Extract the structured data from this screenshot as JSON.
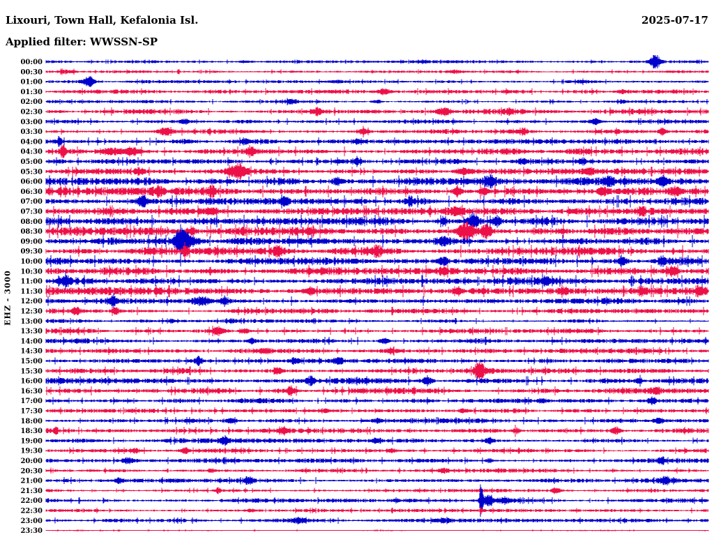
{
  "header": {
    "title": "Lixouri, Town Hall, Kefalonia Isl.",
    "date": "2025-07-17",
    "filter_label": "Applied filter: WWSSN-SP"
  },
  "colors": {
    "background": "#ffffff",
    "text": "#000000",
    "trace_blue": "#0000cc",
    "trace_red": "#ed1048"
  },
  "chart_data": {
    "type": "line",
    "subtype": "helicorder-seismogram",
    "title": "Lixouri, Town Hall, Kefalonia Isl.",
    "date": "2025-07-17",
    "filter": "WWSSN-SP",
    "channel_scale_label": "EHZ - 3000",
    "row_interval_minutes": 30,
    "rows_start": "00:00",
    "rows_end": "23:30",
    "legend": "alternating blue (:00) and red (:30) half-hour traces",
    "rows": [
      {
        "label": "00:00",
        "color": "blue",
        "base": 1.0,
        "bursts": [
          [
            0.92,
            8,
            8
          ],
          [
            0.3,
            10,
            1.5
          ],
          [
            0.57,
            5,
            1.8
          ]
        ]
      },
      {
        "label": "00:30",
        "color": "red",
        "base": 1.0,
        "bursts": [
          [
            0.03,
            14,
            1.8
          ],
          [
            0.2,
            2,
            3.5
          ],
          [
            0.62,
            8,
            1.5
          ]
        ]
      },
      {
        "label": "01:00",
        "color": "blue",
        "base": 1.1,
        "bursts": [
          [
            0.065,
            8,
            5.5
          ],
          [
            0.44,
            6,
            1.8
          ],
          [
            0.81,
            8,
            1.6
          ]
        ]
      },
      {
        "label": "01:30",
        "color": "red",
        "base": 1.5,
        "bursts": [
          [
            0.51,
            9,
            3.5
          ],
          [
            0.87,
            7,
            2.5
          ]
        ]
      },
      {
        "label": "02:00",
        "color": "blue",
        "base": 1.2,
        "bursts": [
          [
            0.37,
            7,
            2.6
          ],
          [
            0.5,
            5,
            2.2
          ],
          [
            0.87,
            5,
            2.0
          ]
        ]
      },
      {
        "label": "02:30",
        "color": "red",
        "base": 1.8,
        "bursts": [
          [
            0.41,
            8,
            3.5
          ],
          [
            0.6,
            9,
            4.5
          ],
          [
            0.7,
            6,
            3.0
          ]
        ]
      },
      {
        "label": "03:00",
        "color": "blue",
        "base": 1.5,
        "bursts": [
          [
            0.21,
            6,
            2.5
          ],
          [
            0.83,
            7,
            3.5
          ]
        ]
      },
      {
        "label": "03:30",
        "color": "red",
        "base": 1.8,
        "bursts": [
          [
            0.18,
            8,
            4.5
          ],
          [
            0.48,
            7,
            3.5
          ],
          [
            0.72,
            6,
            3.5
          ],
          [
            0.93,
            6,
            3.5
          ]
        ]
      },
      {
        "label": "04:00",
        "color": "blue",
        "base": 1.8,
        "bursts": [
          [
            0.02,
            3,
            5.5
          ],
          [
            0.3,
            5,
            2.6
          ],
          [
            0.47,
            6,
            2.8
          ]
        ]
      },
      {
        "label": "04:30",
        "color": "red",
        "base": 2.2,
        "bursts": [
          [
            0.025,
            4,
            6.5
          ],
          [
            0.1,
            14,
            4.5
          ],
          [
            0.13,
            10,
            5.5
          ],
          [
            0.31,
            8,
            3.5
          ]
        ]
      },
      {
        "label": "05:00",
        "color": "blue",
        "base": 1.8,
        "bursts": [
          [
            0.47,
            7,
            2.8
          ],
          [
            0.72,
            7,
            3.5
          ],
          [
            0.81,
            6,
            3.5
          ]
        ]
      },
      {
        "label": "05:30",
        "color": "red",
        "base": 2.2,
        "bursts": [
          [
            0.14,
            6,
            3.5
          ],
          [
            0.29,
            11,
            7.5
          ],
          [
            0.63,
            8,
            3.5
          ],
          [
            0.82,
            6,
            3.5
          ]
        ]
      },
      {
        "label": "06:00",
        "color": "blue",
        "base": 2.7,
        "bursts": [
          [
            0.44,
            7,
            3.5
          ],
          [
            0.67,
            8,
            5.5
          ],
          [
            0.85,
            7,
            4.5
          ],
          [
            0.93,
            7,
            4.5
          ]
        ]
      },
      {
        "label": "06:30",
        "color": "red",
        "base": 2.7,
        "bursts": [
          [
            0.17,
            7,
            4.5
          ],
          [
            0.25,
            7,
            4.5
          ],
          [
            0.62,
            7,
            5.0
          ],
          [
            0.66,
            6,
            5.0
          ],
          [
            0.84,
            6,
            4.5
          ],
          [
            0.95,
            6,
            4.5
          ]
        ]
      },
      {
        "label": "07:00",
        "color": "blue",
        "base": 2.7,
        "bursts": [
          [
            0.145,
            8,
            6.5
          ],
          [
            0.36,
            6,
            3.5
          ],
          [
            0.55,
            6,
            3.5
          ]
        ]
      },
      {
        "label": "07:30",
        "color": "red",
        "base": 2.7,
        "bursts": [
          [
            0.25,
            7,
            4.5
          ],
          [
            0.62,
            7,
            4.5
          ],
          [
            0.9,
            6,
            3.5
          ]
        ]
      },
      {
        "label": "08:00",
        "color": "blue",
        "base": 2.9,
        "bursts": [
          [
            0.6,
            4,
            7.5
          ],
          [
            0.645,
            8,
            8.5
          ],
          [
            0.68,
            6,
            6.0
          ]
        ]
      },
      {
        "label": "08:30",
        "color": "red",
        "base": 3.1,
        "bursts": [
          [
            0.22,
            5,
            5.5
          ],
          [
            0.635,
            12,
            9.5
          ],
          [
            0.665,
            7,
            8.0
          ]
        ]
      },
      {
        "label": "09:00",
        "color": "blue",
        "base": 2.9,
        "bursts": [
          [
            0.205,
            8,
            12.5
          ],
          [
            0.21,
            15,
            6.0
          ],
          [
            0.6,
            6,
            3.5
          ]
        ]
      },
      {
        "label": "09:30",
        "color": "red",
        "base": 2.9,
        "bursts": [
          [
            0.21,
            3,
            7.5
          ],
          [
            0.35,
            7,
            4.5
          ],
          [
            0.5,
            7,
            4.5
          ]
        ]
      },
      {
        "label": "10:00",
        "color": "blue",
        "base": 2.7,
        "bursts": [
          [
            0.6,
            7,
            4.5
          ],
          [
            0.87,
            6,
            4.5
          ],
          [
            0.93,
            6,
            4.5
          ]
        ]
      },
      {
        "label": "10:30",
        "color": "red",
        "base": 2.7,
        "bursts": [
          [
            0.6,
            6,
            3.5
          ],
          [
            0.945,
            8,
            5.5
          ]
        ]
      },
      {
        "label": "11:00",
        "color": "blue",
        "base": 2.7,
        "bursts": [
          [
            0.03,
            5,
            6.5
          ],
          [
            0.755,
            6,
            3.5
          ]
        ]
      },
      {
        "label": "11:30",
        "color": "red",
        "base": 2.7,
        "bursts": [
          [
            0.4,
            6,
            4.5
          ],
          [
            0.62,
            6,
            4.5
          ],
          [
            0.78,
            6,
            4.5
          ],
          [
            0.9,
            6,
            4.5
          ],
          [
            0.985,
            5,
            4.5
          ]
        ]
      },
      {
        "label": "12:00",
        "color": "blue",
        "base": 2.1,
        "bursts": [
          [
            0.1,
            6,
            4.5
          ],
          [
            0.235,
            14,
            4.5
          ],
          [
            0.27,
            7,
            4.5
          ]
        ]
      },
      {
        "label": "12:30",
        "color": "red",
        "base": 1.8,
        "bursts": [
          [
            0.045,
            6,
            4.5
          ],
          [
            0.105,
            6,
            3.5
          ]
        ]
      },
      {
        "label": "13:00",
        "color": "blue",
        "base": 1.3,
        "bursts": [
          [
            0.19,
            5,
            2.2
          ],
          [
            0.28,
            5,
            2.2
          ]
        ]
      },
      {
        "label": "13:30",
        "color": "red",
        "base": 1.8,
        "bursts": [
          [
            0.26,
            8,
            4.5
          ],
          [
            0.3,
            6,
            3.5
          ]
        ]
      },
      {
        "label": "14:00",
        "color": "blue",
        "base": 1.8,
        "bursts": [
          [
            0.31,
            6,
            3.5
          ],
          [
            0.51,
            7,
            3.5
          ]
        ]
      },
      {
        "label": "14:30",
        "color": "red",
        "base": 1.8,
        "bursts": [
          [
            0.33,
            6,
            2.8
          ],
          [
            0.52,
            5,
            2.8
          ]
        ]
      },
      {
        "label": "15:00",
        "color": "blue",
        "base": 1.6,
        "bursts": [
          [
            0.23,
            5,
            5.5
          ],
          [
            0.375,
            6,
            3.5
          ],
          [
            0.44,
            7,
            3.5
          ]
        ]
      },
      {
        "label": "15:30",
        "color": "red",
        "base": 2.0,
        "bursts": [
          [
            0.35,
            6,
            3.5
          ],
          [
            0.655,
            8,
            8.5
          ]
        ]
      },
      {
        "label": "16:00",
        "color": "blue",
        "base": 2.0,
        "bursts": [
          [
            0.4,
            6,
            4.5
          ],
          [
            0.575,
            7,
            4.5
          ],
          [
            0.895,
            5,
            2.8
          ]
        ]
      },
      {
        "label": "16:30",
        "color": "red",
        "base": 2.0,
        "bursts": [
          [
            0.37,
            6,
            4.5
          ],
          [
            0.92,
            6,
            3.5
          ]
        ]
      },
      {
        "label": "17:00",
        "color": "blue",
        "base": 1.6,
        "bursts": [
          [
            0.75,
            5,
            2.8
          ],
          [
            0.915,
            6,
            3.5
          ]
        ]
      },
      {
        "label": "17:30",
        "color": "red",
        "base": 1.6,
        "bursts": [
          [
            0.42,
            5,
            2.8
          ],
          [
            0.63,
            5,
            2.8
          ]
        ]
      },
      {
        "label": "18:00",
        "color": "blue",
        "base": 1.7,
        "bursts": [
          [
            0.28,
            6,
            2.8
          ],
          [
            0.5,
            5,
            2.8
          ],
          [
            0.925,
            6,
            3.5
          ]
        ]
      },
      {
        "label": "18:30",
        "color": "red",
        "base": 1.7,
        "bursts": [
          [
            0.015,
            3,
            3.5
          ],
          [
            0.36,
            6,
            3.5
          ],
          [
            0.71,
            5,
            3.5
          ],
          [
            0.86,
            6,
            4.5
          ]
        ]
      },
      {
        "label": "19:00",
        "color": "blue",
        "base": 1.7,
        "bursts": [
          [
            0.27,
            6,
            3.5
          ],
          [
            0.5,
            6,
            3.5
          ],
          [
            0.67,
            5,
            2.8
          ]
        ]
      },
      {
        "label": "19:30",
        "color": "red",
        "base": 1.5,
        "bursts": [
          [
            0.135,
            5,
            2.8
          ],
          [
            0.21,
            6,
            3.5
          ],
          [
            0.52,
            5,
            2.8
          ]
        ]
      },
      {
        "label": "20:00",
        "color": "blue",
        "base": 1.6,
        "bursts": [
          [
            0.125,
            9,
            2.8
          ],
          [
            0.67,
            5,
            2.8
          ],
          [
            0.93,
            5,
            2.8
          ]
        ]
      },
      {
        "label": "20:30",
        "color": "red",
        "base": 1.3,
        "bursts": [
          [
            0.25,
            5,
            2.2
          ],
          [
            0.6,
            5,
            2.2
          ]
        ]
      },
      {
        "label": "21:00",
        "color": "blue",
        "base": 1.6,
        "bursts": [
          [
            0.11,
            6,
            3.5
          ],
          [
            0.305,
            6,
            3.5
          ],
          [
            0.935,
            6,
            3.5
          ]
        ]
      },
      {
        "label": "21:30",
        "color": "red",
        "base": 1.2,
        "bursts": [
          [
            0.26,
            4,
            2.8
          ],
          [
            0.77,
            5,
            3.5
          ]
        ]
      },
      {
        "label": "22:00",
        "color": "blue",
        "base": 1.5,
        "bursts": [
          [
            0.657,
            2.5,
            25
          ],
          [
            0.668,
            7,
            7.0
          ],
          [
            0.69,
            10,
            3.0
          ]
        ]
      },
      {
        "label": "22:30",
        "color": "red",
        "base": 1.2,
        "bursts": [
          [
            0.657,
            1.5,
            4.5
          ],
          [
            0.31,
            4,
            1.8
          ]
        ]
      },
      {
        "label": "23:00",
        "color": "blue",
        "base": 1.4,
        "bursts": [
          [
            0.38,
            10,
            2.2
          ],
          [
            0.6,
            6,
            1.8
          ]
        ]
      },
      {
        "label": "23:30",
        "color": "red",
        "base": 0.45,
        "bursts": [
          [
            0.11,
            1.5,
            1.4
          ],
          [
            0.155,
            1.5,
            1.4
          ],
          [
            0.315,
            1.5,
            1.4
          ]
        ]
      }
    ]
  }
}
